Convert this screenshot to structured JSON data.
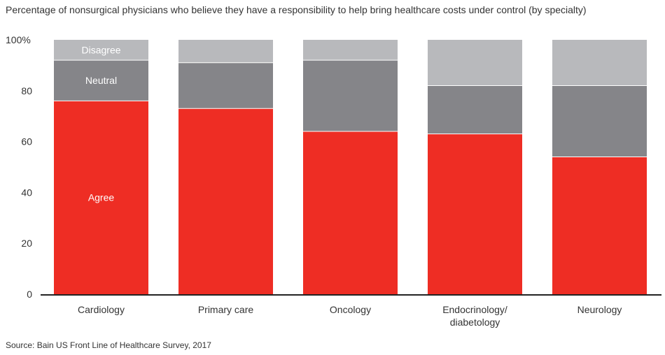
{
  "chart_data": {
    "type": "bar",
    "stacked": true,
    "title": "Percentage of nonsurgical physicians who believe they have a responsibility to help bring healthcare costs under control (by specialty)",
    "source": "Source: Bain US Front Line of Healthcare Survey, 2017",
    "categories": [
      "Cardiology",
      "Primary care",
      "Oncology",
      "Endocrinology/\ndiabetology",
      "Neurology"
    ],
    "series": [
      {
        "name": "Agree",
        "values": [
          76,
          73,
          64,
          63,
          54
        ],
        "color": "#ee2d24"
      },
      {
        "name": "Neutral",
        "values": [
          16,
          18,
          28,
          19,
          28
        ],
        "color": "#858589"
      },
      {
        "name": "Disagree",
        "values": [
          8,
          9,
          8,
          18,
          18
        ],
        "color": "#b8b9bc"
      }
    ],
    "ylim": [
      0,
      100
    ],
    "yticks": [
      "0",
      "20",
      "40",
      "60",
      "80",
      "100%"
    ],
    "ytick_values": [
      0,
      20,
      40,
      60,
      80,
      100
    ],
    "segment_labels_on_category": 0,
    "grid": false
  }
}
